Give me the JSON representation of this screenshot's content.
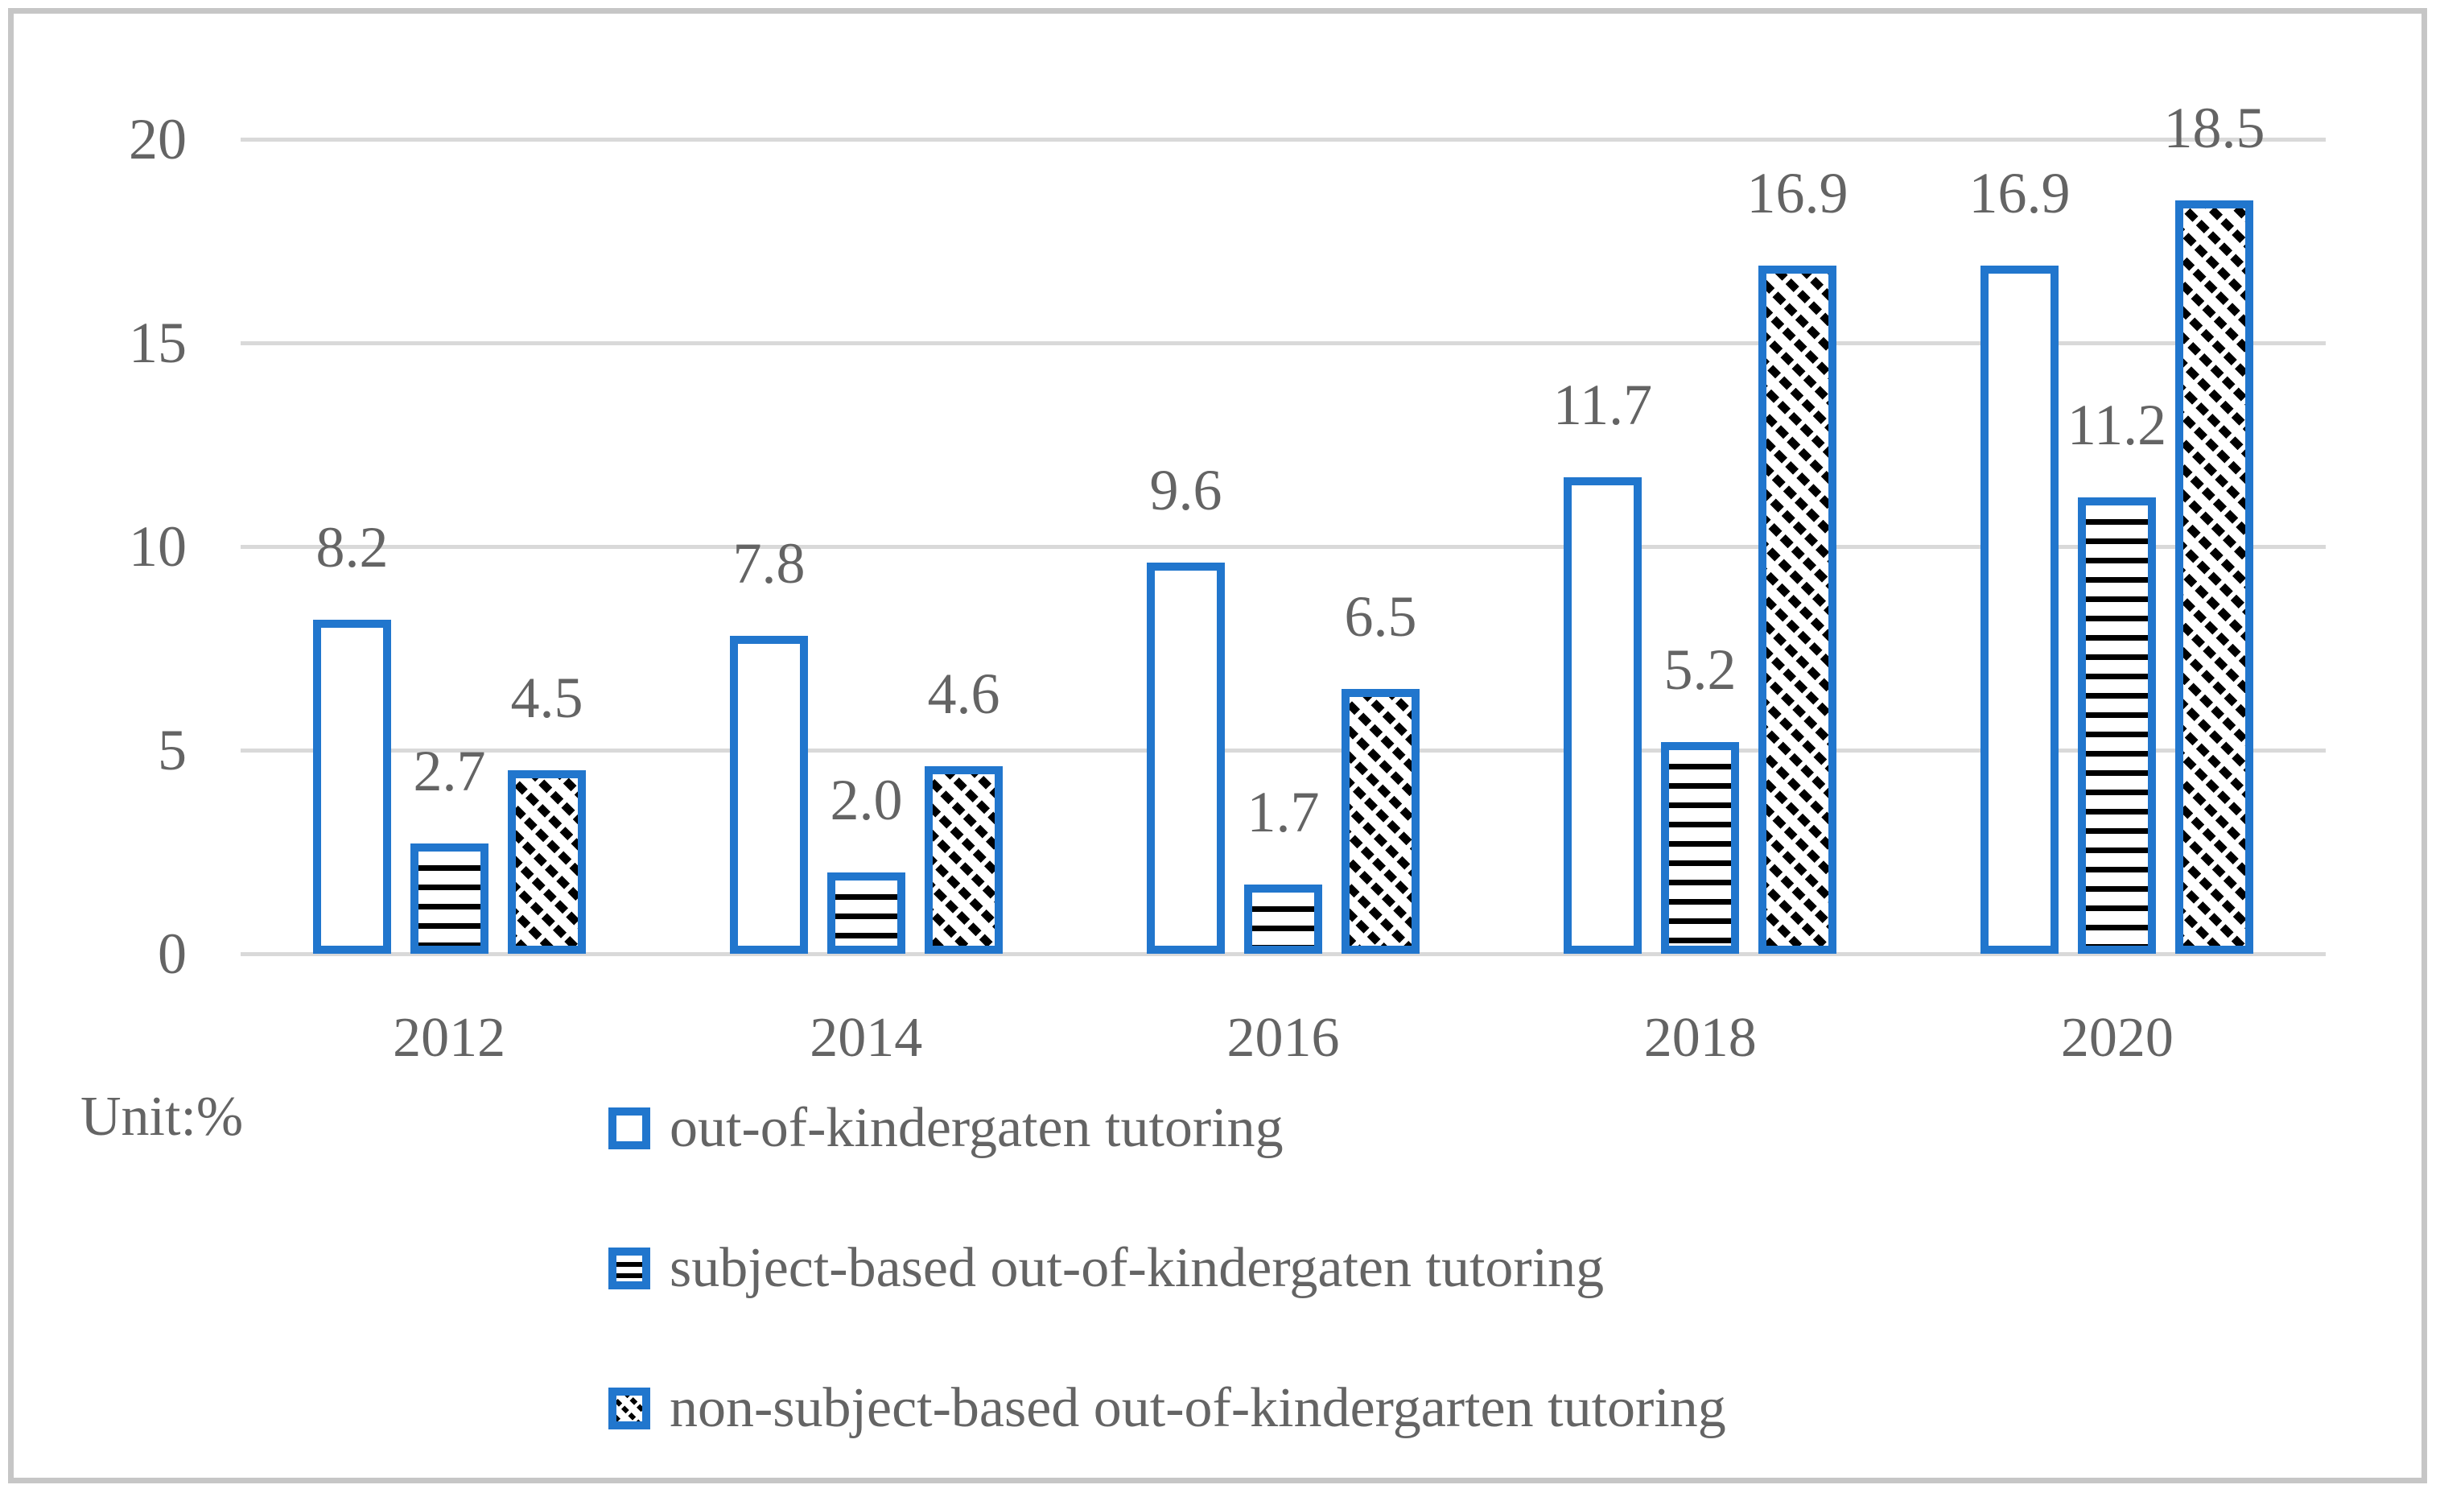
{
  "chart_data": {
    "type": "bar",
    "title": "",
    "unit_label": "Unit:%",
    "categories": [
      "2012",
      "2014",
      "2016",
      "2018",
      "2020"
    ],
    "series": [
      {
        "name": "out-of-kindergaten tutoring",
        "pattern": "solid-white",
        "values": [
          8.2,
          7.8,
          9.6,
          11.7,
          16.9
        ]
      },
      {
        "name": "subject-based out-of-kindergaten tutoring",
        "pattern": "horizontal-stripes",
        "values": [
          2.7,
          2.0,
          1.7,
          5.2,
          11.2
        ]
      },
      {
        "name": "non-subject-based out-of-kindergarten tutoring",
        "pattern": "diagonal-hatch",
        "values": [
          4.5,
          4.6,
          6.5,
          16.9,
          18.5
        ]
      }
    ],
    "y_ticks": [
      0,
      5,
      10,
      15,
      20
    ],
    "ylim": [
      0,
      20
    ],
    "grid": true,
    "legend_position": "bottom-left",
    "value_labels_shown": true,
    "value_label_decimals": 1,
    "colors": {
      "bar_border": "#2176CD",
      "pattern_ink": "#000000",
      "gridline": "#D9D9D9",
      "text": "#646464",
      "frame": "#C6C6C6",
      "background": "#FFFFFF"
    }
  }
}
